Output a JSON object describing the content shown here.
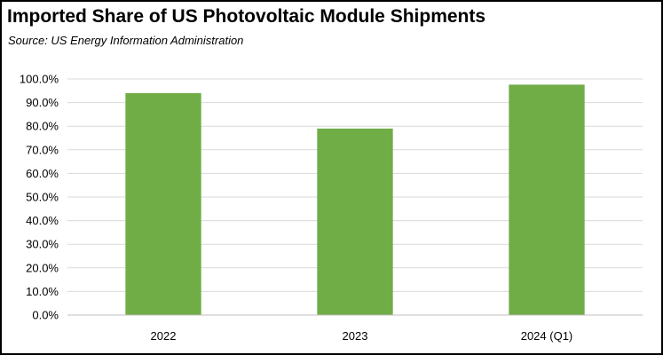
{
  "chart_data": {
    "type": "bar",
    "title": "Imported Share of US Photovoltaic Module Shipments",
    "subtitle": "Source:  US Energy Information Administration",
    "categories": [
      "2022",
      "2023",
      "2024 (Q1)"
    ],
    "values": [
      94.0,
      79.0,
      97.6
    ],
    "value_format": "percent",
    "xlabel": "",
    "ylabel": "",
    "ylim": [
      0,
      100
    ],
    "yticks": [
      0,
      10,
      20,
      30,
      40,
      50,
      60,
      70,
      80,
      90,
      100
    ],
    "ytick_labels": [
      "0.0%",
      "10.0%",
      "20.0%",
      "30.0%",
      "40.0%",
      "50.0%",
      "60.0%",
      "70.0%",
      "80.0%",
      "90.0%",
      "100.0%"
    ],
    "grid": true,
    "legend": "none",
    "bar_color": "#70AD47",
    "grid_color": "#D9D9D9"
  }
}
